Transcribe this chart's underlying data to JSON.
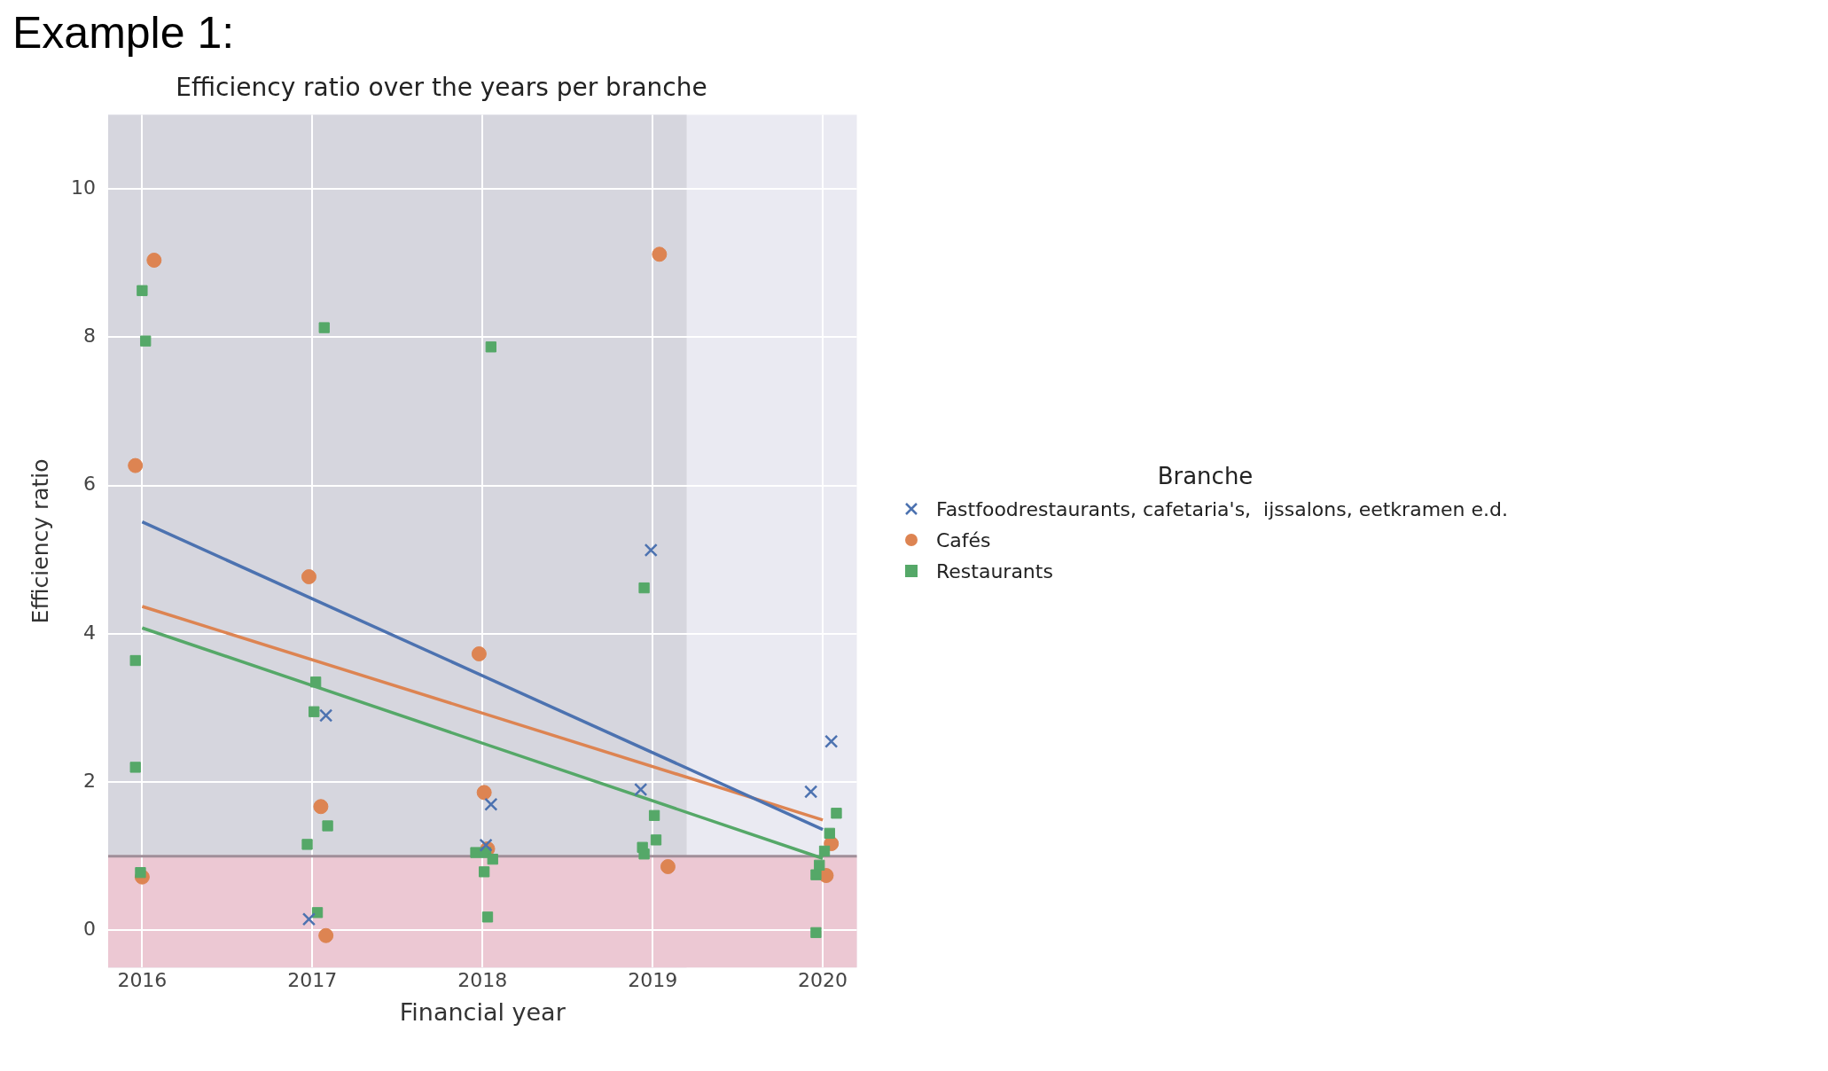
{
  "chart_data": {
    "type": "scatter",
    "title": "Efficiency ratio over the years per branche",
    "xlabel": "Financial year",
    "ylabel": "Efficiency ratio",
    "legend_title": "Branche",
    "legend": "right",
    "grid": true,
    "annotations": [
      "Example 1:"
    ],
    "xlim": [
      2015.8,
      2020.2
    ],
    "xticks": [
      2016,
      2017,
      2018,
      2019,
      2020
    ],
    "ylim": [
      -0.5,
      11
    ],
    "yticks": [
      0,
      2,
      4,
      6,
      8,
      10
    ],
    "bands": [
      {
        "axis": "x",
        "from": 2015.8,
        "to": 2019.2,
        "color": "#d6d6de"
      },
      {
        "axis": "y",
        "from": -0.5,
        "to": 1,
        "color": "#ecc8d3"
      }
    ],
    "ref_lines": [
      {
        "axis": "y",
        "value": 1,
        "color": "#a08e99"
      }
    ],
    "series": [
      {
        "name": "Fastfoodrestaurants, cafetaria's,  ijssalons, eetkramen e.d.",
        "marker": "cross",
        "color": "#4c72b0",
        "x": [
          2017.08,
          2016.98,
          2018.05,
          2018.02,
          2018.93,
          2018.99,
          2019.93,
          2020.05
        ],
        "values": [
          2.9,
          0.15,
          1.7,
          1.15,
          1.9,
          5.13,
          1.87,
          2.55
        ]
      },
      {
        "name": "Cafés",
        "marker": "circle",
        "color": "#dd8452",
        "x": [
          2016.07,
          2015.96,
          2016.0,
          2016.98,
          2017.05,
          2017.08,
          2017.98,
          2018.01,
          2018.03,
          2019.04,
          2019.09,
          2020.02,
          2020.05
        ],
        "values": [
          9.04,
          6.27,
          0.72,
          4.77,
          1.67,
          -0.07,
          3.73,
          1.86,
          1.1,
          9.12,
          0.86,
          0.74,
          1.17
        ]
      },
      {
        "name": "Restaurants",
        "marker": "square",
        "color": "#55a868",
        "x": [
          2016.0,
          2016.02,
          2015.96,
          2015.96,
          2015.99,
          2017.07,
          2017.02,
          2017.01,
          2017.09,
          2016.97,
          2017.03,
          2018.05,
          2017.96,
          2018.02,
          2018.06,
          2018.01,
          2018.03,
          2018.95,
          2019.01,
          2019.02,
          2018.94,
          2018.95,
          2020.08,
          2020.04,
          2020.01,
          2019.98,
          2019.96,
          2019.96
        ],
        "values": [
          8.63,
          7.95,
          3.64,
          2.2,
          0.78,
          8.13,
          3.35,
          2.95,
          1.41,
          1.16,
          0.24,
          7.87,
          1.05,
          1.05,
          0.96,
          0.79,
          0.18,
          4.62,
          1.55,
          1.22,
          1.12,
          1.03,
          1.58,
          1.31,
          1.07,
          0.88,
          0.75,
          -0.03
        ]
      },
      {
        "type": "line",
        "color": "#4c72b0",
        "x": [
          2016,
          2020
        ],
        "values": [
          5.51,
          1.36
        ]
      },
      {
        "type": "line",
        "color": "#dd8452",
        "x": [
          2016,
          2020
        ],
        "values": [
          4.37,
          1.49
        ]
      },
      {
        "type": "line",
        "color": "#55a868",
        "x": [
          2016,
          2020
        ],
        "values": [
          4.08,
          0.97
        ]
      }
    ]
  }
}
